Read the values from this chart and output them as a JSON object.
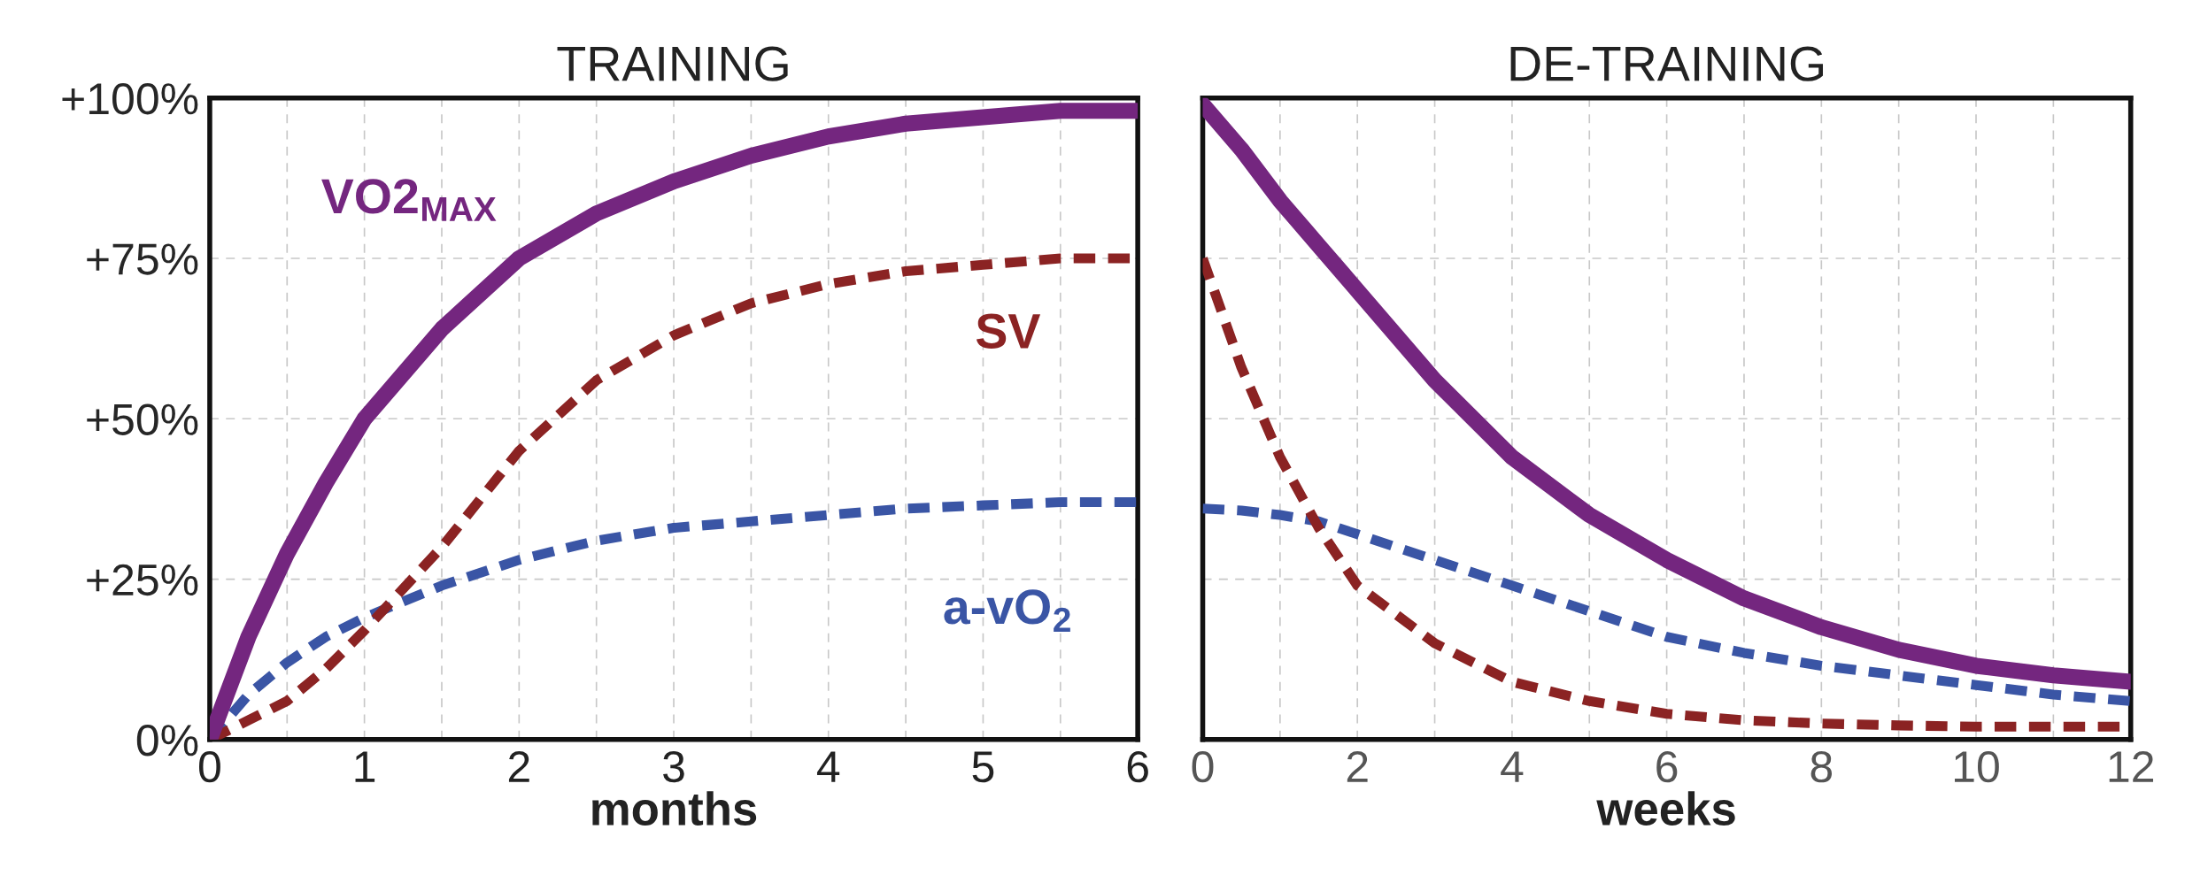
{
  "chart_data": [
    {
      "type": "line",
      "title": "TRAINING",
      "xlabel": "months",
      "xlim": [
        0,
        6
      ],
      "ylim": [
        0,
        100
      ],
      "xticks": [
        0,
        {
          "value": 0.5,
          "label": null
        },
        1,
        {
          "value": 1.5,
          "label": null
        },
        2,
        {
          "value": 2.5,
          "label": null
        },
        3,
        {
          "value": 3.5,
          "label": null
        },
        4,
        {
          "value": 4.5,
          "label": null
        },
        5,
        {
          "value": 5.5,
          "label": null
        },
        6
      ],
      "yticks": [
        {
          "value": 0,
          "label": "0%"
        },
        {
          "value": 25,
          "label": "+25%"
        },
        {
          "value": 50,
          "label": "+50%"
        },
        {
          "value": 75,
          "label": "+75%"
        },
        {
          "value": 100,
          "label": "+100%"
        }
      ],
      "grid": true,
      "x": [
        0,
        0.25,
        0.5,
        0.75,
        1,
        1.5,
        2,
        2.5,
        3,
        3.5,
        4,
        4.5,
        5,
        5.5,
        6
      ],
      "series": [
        {
          "name": "VO2$_{MAX}$",
          "color": "#74267f",
          "line_style": "solid",
          "values": [
            0,
            16,
            29,
            40,
            50,
            64,
            75,
            82,
            87,
            91,
            94,
            96,
            97,
            98,
            98
          ]
        },
        {
          "name": "SV",
          "color": "#8b2323",
          "line_style": "dashed",
          "values": [
            0,
            3,
            6,
            11,
            17,
            30,
            45,
            56,
            63,
            68,
            71,
            73,
            74,
            75,
            75
          ]
        },
        {
          "name": "a-vO$_{2}$",
          "color": "#3a55a5",
          "line_style": "dashed",
          "values": [
            0,
            7,
            12,
            16,
            19,
            24,
            28,
            31,
            33,
            34,
            35,
            36,
            36.5,
            37,
            37
          ]
        }
      ]
    },
    {
      "type": "line",
      "title": "DE-TRAINING",
      "xlabel": "weeks",
      "xlim": [
        0,
        12
      ],
      "ylim": [
        0,
        100
      ],
      "tick_labels": "x",
      "xticks": [
        0,
        {
          "value": 1,
          "label": null
        },
        2,
        {
          "value": 3,
          "label": null
        },
        4,
        {
          "value": 5,
          "label": null
        },
        6,
        {
          "value": 7,
          "label": null
        },
        8,
        {
          "value": 9,
          "label": null
        },
        10,
        {
          "value": 11,
          "label": null
        },
        12
      ],
      "yticks": [
        0,
        25,
        50,
        75,
        100
      ],
      "grid": true,
      "x": [
        0,
        0.5,
        1,
        1.5,
        2,
        3,
        4,
        5,
        6,
        7,
        8,
        9,
        10,
        11,
        12
      ],
      "series": [
        {
          "color": "#74267f",
          "line_style": "solid",
          "values": [
            99,
            92,
            84,
            77,
            70,
            56,
            44,
            35,
            28,
            22,
            17.5,
            14,
            11.5,
            10,
            9
          ]
        },
        {
          "color": "#8b2323",
          "line_style": "dashed",
          "values": [
            75,
            58,
            44,
            33,
            24,
            15,
            9,
            6,
            4,
            3,
            2.5,
            2.2,
            2,
            2,
            2
          ]
        },
        {
          "color": "#3a55a5",
          "line_style": "dashed",
          "values": [
            36,
            35.7,
            35,
            34,
            32,
            28,
            24,
            20,
            16,
            13.5,
            11.5,
            10,
            8.5,
            7,
            6
          ]
        }
      ]
    }
  ]
}
